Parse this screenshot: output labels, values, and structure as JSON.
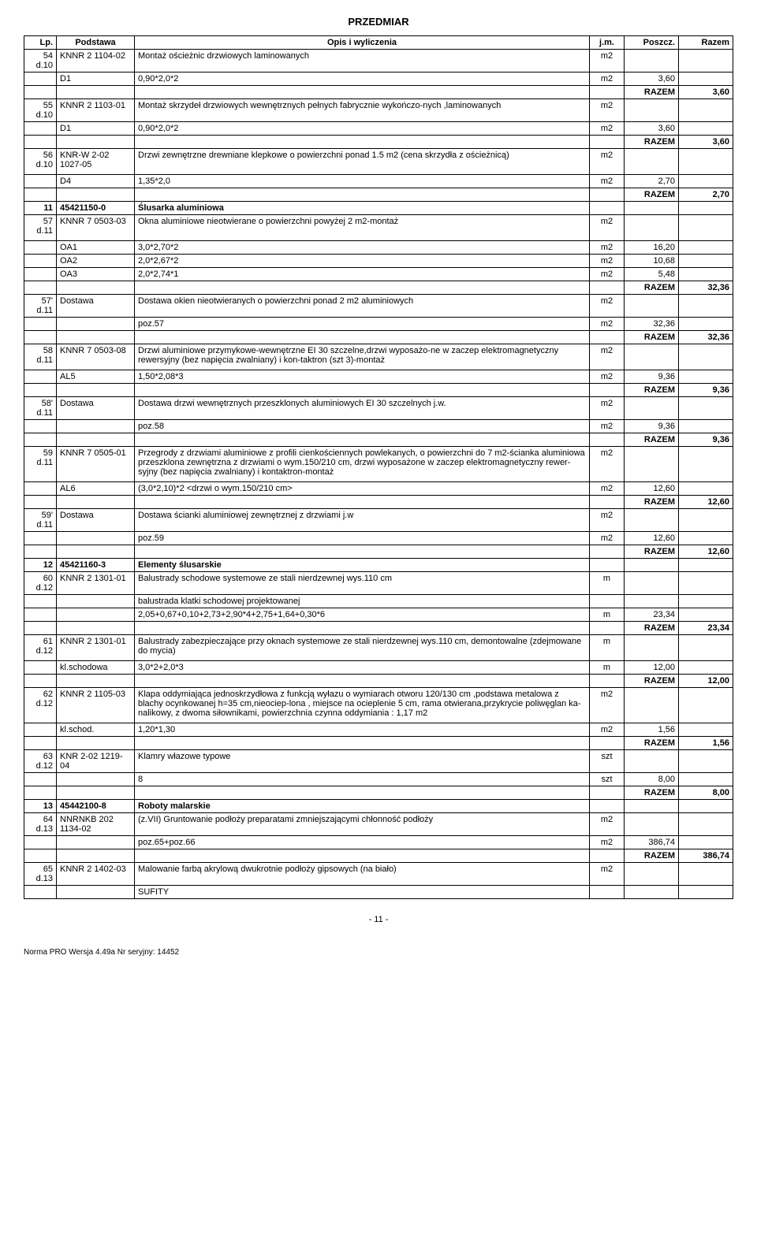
{
  "title": "PRZEDMIAR",
  "columns": [
    "Lp.",
    "Podstawa",
    "Opis i wyliczenia",
    "j.m.",
    "Poszcz.",
    "Razem"
  ],
  "rows": [
    {
      "lp": "54\nd.10",
      "pod": "KNNR 2 1104-02",
      "opis": "Montaż ościeżnic drzwiowych laminowanych",
      "jm": "m2",
      "poszcz": "",
      "razem": "",
      "bt": true
    },
    {
      "lp": "",
      "pod": "D1",
      "opis": "0,90*2,0*2",
      "jm": "m2",
      "poszcz": "3,60",
      "razem": "",
      "bt": true
    },
    {
      "lp": "",
      "pod": "",
      "opis": "",
      "jm": "",
      "poszcz": "RAZEM",
      "razem": "3,60",
      "bt": true,
      "bold": true
    },
    {
      "lp": "55\nd.10",
      "pod": "KNNR 2 1103-01",
      "opis": "Montaż skrzydeł drzwiowych wewnętrznych pełnych fabrycznie wykończo-nych ,laminowanych",
      "jm": "m2",
      "poszcz": "",
      "razem": "",
      "bt": true
    },
    {
      "lp": "",
      "pod": "D1",
      "opis": "0,90*2,0*2",
      "jm": "m2",
      "poszcz": "3,60",
      "razem": "",
      "bt": true
    },
    {
      "lp": "",
      "pod": "",
      "opis": "",
      "jm": "",
      "poszcz": "RAZEM",
      "razem": "3,60",
      "bt": true,
      "bold": true
    },
    {
      "lp": "56\nd.10",
      "pod": "KNR-W 2-02 1027-05",
      "opis": "Drzwi zewnętrzne drewniane klepkowe o powierzchni ponad 1.5 m2 (cena skrzydła z ościeżnicą)",
      "jm": "m2",
      "poszcz": "",
      "razem": "",
      "bt": true
    },
    {
      "lp": "",
      "pod": "",
      "opis": "",
      "jm": "",
      "poszcz": "",
      "razem": ""
    },
    {
      "lp": "",
      "pod": "D4",
      "opis": "1,35*2,0",
      "jm": "m2",
      "poszcz": "2,70",
      "razem": "",
      "bt": true
    },
    {
      "lp": "",
      "pod": "",
      "opis": "",
      "jm": "",
      "poszcz": "RAZEM",
      "razem": "2,70",
      "bt": true,
      "bold": true
    },
    {
      "lp": "11",
      "pod": "45421150-0",
      "opis": "Ślusarka aluminiowa",
      "jm": "",
      "poszcz": "",
      "razem": "",
      "bt": true,
      "bold": true
    },
    {
      "lp": "57\nd.11",
      "pod": "KNNR 7 0503-03",
      "opis": "Okna aluminiowe nieotwierane o powierzchni powyżej 2 m2-montaż",
      "jm": "m2",
      "poszcz": "",
      "razem": "",
      "bt": true
    },
    {
      "lp": "",
      "pod": "",
      "opis": "",
      "jm": "",
      "poszcz": "",
      "razem": ""
    },
    {
      "lp": "",
      "pod": "OA1",
      "opis": "3,0*2,70*2",
      "jm": "m2",
      "poszcz": "16,20",
      "razem": "",
      "bt": true
    },
    {
      "lp": "",
      "pod": "OA2",
      "opis": "2,0*2,67*2",
      "jm": "m2",
      "poszcz": "10,68",
      "razem": "",
      "bt": true
    },
    {
      "lp": "",
      "pod": "OA3",
      "opis": "2,0*2,74*1",
      "jm": "m2",
      "poszcz": "5,48",
      "razem": "",
      "bt": true
    },
    {
      "lp": "",
      "pod": "",
      "opis": "",
      "jm": "",
      "poszcz": "RAZEM",
      "razem": "32,36",
      "bt": true,
      "bold": true
    },
    {
      "lp": "57'\nd.11",
      "pod": "Dostawa",
      "opis": "Dostawa okien  nieotwieranych  o powierzchni ponad 2 m2 aluminiowych",
      "jm": "m2",
      "poszcz": "",
      "razem": "",
      "bt": true
    },
    {
      "lp": "",
      "pod": "",
      "opis": "poz.57",
      "jm": "m2",
      "poszcz": "32,36",
      "razem": "",
      "bt": true
    },
    {
      "lp": "",
      "pod": "",
      "opis": "",
      "jm": "",
      "poszcz": "RAZEM",
      "razem": "32,36",
      "bt": true,
      "bold": true
    },
    {
      "lp": "58\nd.11",
      "pod": "KNNR 7 0503-08",
      "opis": "Drzwi aluminiowe przymykowe-wewnętrzne EI 30 szczelne,drzwi wyposażo-ne w zaczep elektromagnetyczny rewersyjny (bez napięcia zwalniany) i kon-taktron (szt 3)-montaż",
      "jm": "m2",
      "poszcz": "",
      "razem": "",
      "bt": true
    },
    {
      "lp": "",
      "pod": "",
      "opis": "",
      "jm": "",
      "poszcz": "",
      "razem": ""
    },
    {
      "lp": "",
      "pod": "AL5",
      "opis": "1,50*2,08*3",
      "jm": "m2",
      "poszcz": "9,36",
      "razem": "",
      "bt": true
    },
    {
      "lp": "",
      "pod": "",
      "opis": "",
      "jm": "",
      "poszcz": "RAZEM",
      "razem": "9,36",
      "bt": true,
      "bold": true
    },
    {
      "lp": "58'\nd.11",
      "pod": "Dostawa",
      "opis": "Dostawa drzwi wewnętrznych przeszklonych aluminiowych EI 30 szczelnych j.w.",
      "jm": "m2",
      "poszcz": "",
      "razem": "",
      "bt": true
    },
    {
      "lp": "",
      "pod": "",
      "opis": "poz.58",
      "jm": "m2",
      "poszcz": "9,36",
      "razem": "",
      "bt": true
    },
    {
      "lp": "",
      "pod": "",
      "opis": "",
      "jm": "",
      "poszcz": "RAZEM",
      "razem": "9,36",
      "bt": true,
      "bold": true
    },
    {
      "lp": "59\nd.11",
      "pod": "KNNR 7 0505-01",
      "opis": "Przegrody z drzwiami aluminiowe z profili cienkościennych powlekanych, o powierzchni do 7 m2-ścianka aluminiowa przeszklona zewnętrzna z drzwiami o wym.150/210 cm, drzwi wyposażone w zaczep elektromagnetyczny rewer-syjny (bez napięcia zwalniany) i kontaktron-montaż",
      "jm": "m2",
      "poszcz": "",
      "razem": "",
      "bt": true
    },
    {
      "lp": "",
      "pod": "",
      "opis": "",
      "jm": "",
      "poszcz": "",
      "razem": ""
    },
    {
      "lp": "",
      "pod": "AL6",
      "opis": "(3,0*2,10)*2 <drzwi o wym.150/210 cm>",
      "jm": "m2",
      "poszcz": "12,60",
      "razem": "",
      "bt": true
    },
    {
      "lp": "",
      "pod": "",
      "opis": "",
      "jm": "",
      "poszcz": "RAZEM",
      "razem": "12,60",
      "bt": true,
      "bold": true
    },
    {
      "lp": "59'\nd.11",
      "pod": "Dostawa",
      "opis": "Dostawa ścianki aluminiowej zewnętrznej z drzwiami j.w",
      "jm": "m2",
      "poszcz": "",
      "razem": "",
      "bt": true
    },
    {
      "lp": "",
      "pod": "",
      "opis": "poz.59",
      "jm": "m2",
      "poszcz": "12,60",
      "razem": "",
      "bt": true
    },
    {
      "lp": "",
      "pod": "",
      "opis": "",
      "jm": "",
      "poszcz": "RAZEM",
      "razem": "12,60",
      "bt": true,
      "bold": true
    },
    {
      "lp": "12",
      "pod": "45421160-3",
      "opis": "Elementy ślusarskie",
      "jm": "",
      "poszcz": "",
      "razem": "",
      "bt": true,
      "bold": true
    },
    {
      "lp": "60\nd.12",
      "pod": "KNNR 2 1301-01",
      "opis": "Balustrady schodowe systemowe ze stali nierdzewnej wys.110 cm",
      "jm": "m",
      "poszcz": "",
      "razem": "",
      "bt": true
    },
    {
      "lp": "",
      "pod": "",
      "opis": "balustrada klatki schodowej projektowanej",
      "jm": "",
      "poszcz": "",
      "razem": "",
      "bt": true
    },
    {
      "lp": "",
      "pod": "",
      "opis": "2,05+0,67+0,10+2,73+2,90*4+2,75+1,64+0,30*6",
      "jm": "m",
      "poszcz": "23,34",
      "razem": "",
      "bt": true
    },
    {
      "lp": "",
      "pod": "",
      "opis": "",
      "jm": "",
      "poszcz": "RAZEM",
      "razem": "23,34",
      "bt": true,
      "bold": true
    },
    {
      "lp": "61\nd.12",
      "pod": "KNNR 2 1301-01",
      "opis": "Balustrady zabezpieczające przy oknach systemowe ze stali nierdzewnej wys.110 cm, demontowalne (zdejmowane do mycia)",
      "jm": "m",
      "poszcz": "",
      "razem": "",
      "bt": true
    },
    {
      "lp": "",
      "pod": "",
      "opis": "",
      "jm": "",
      "poszcz": "",
      "razem": ""
    },
    {
      "lp": "",
      "pod": "kl.schodowa",
      "opis": "3,0*2+2,0*3",
      "jm": "m",
      "poszcz": "12,00",
      "razem": "",
      "bt": true
    },
    {
      "lp": "",
      "pod": "",
      "opis": "",
      "jm": "",
      "poszcz": "RAZEM",
      "razem": "12,00",
      "bt": true,
      "bold": true
    },
    {
      "lp": "62\nd.12",
      "pod": "KNNR 2 1105-03",
      "opis": "Klapa oddymiająca jednoskrzydłowa z funkcją wyłazu o wymiarach otworu 120/130  cm ,podstawa metalowa z blachy ocynkowanej h=35 cm,nieociep-lona , miejsce na ocieplenie 5 cm, rama otwierana,przykrycie poliwęglan ka-nalikowy, z dwoma siłownikami, powierzchnia czynna oddymiania : 1,17 m2",
      "jm": "m2",
      "poszcz": "",
      "razem": "",
      "bt": true
    },
    {
      "lp": "",
      "pod": "",
      "opis": "",
      "jm": "",
      "poszcz": "",
      "razem": ""
    },
    {
      "lp": "",
      "pod": "kl.schod.",
      "opis": "1,20*1,30",
      "jm": "m2",
      "poszcz": "1,56",
      "razem": "",
      "bt": true
    },
    {
      "lp": "",
      "pod": "",
      "opis": "",
      "jm": "",
      "poszcz": "RAZEM",
      "razem": "1,56",
      "bt": true,
      "bold": true
    },
    {
      "lp": "63\nd.12",
      "pod": "KNR 2-02 1219-04",
      "opis": "Klamry włazowe typowe",
      "jm": "szt",
      "poszcz": "",
      "razem": "",
      "bt": true
    },
    {
      "lp": "",
      "pod": "",
      "opis": "8",
      "jm": "szt",
      "poszcz": "8,00",
      "razem": "",
      "bt": true
    },
    {
      "lp": "",
      "pod": "",
      "opis": "",
      "jm": "",
      "poszcz": "RAZEM",
      "razem": "8,00",
      "bt": true,
      "bold": true
    },
    {
      "lp": "13",
      "pod": "45442100-8",
      "opis": "Roboty malarskie",
      "jm": "",
      "poszcz": "",
      "razem": "",
      "bt": true,
      "bold": true
    },
    {
      "lp": "64\nd.13",
      "pod": "NNRNKB 202 1134-02",
      "opis": "(z.VII) Gruntowanie podłoży preparatami zmniejszającymi chłonność podłoży",
      "jm": "m2",
      "poszcz": "",
      "razem": "",
      "bt": true
    },
    {
      "lp": "",
      "pod": "",
      "opis": "poz.65+poz.66",
      "jm": "m2",
      "poszcz": "386,74",
      "razem": "",
      "bt": true
    },
    {
      "lp": "",
      "pod": "",
      "opis": "",
      "jm": "",
      "poszcz": "RAZEM",
      "razem": "386,74",
      "bt": true,
      "bold": true
    },
    {
      "lp": "65\nd.13",
      "pod": "KNNR 2 1402-03",
      "opis": "Malowanie farbą akrylową dwukrotnie podłoży gipsowych (na biało)",
      "jm": "m2",
      "poszcz": "",
      "razem": "",
      "bt": true
    },
    {
      "lp": "",
      "pod": "",
      "opis": "SUFITY",
      "jm": "",
      "poszcz": "",
      "razem": "",
      "bt": true,
      "bb": true
    }
  ],
  "pageNum": "- 11 -",
  "footer": "Norma PRO Wersja 4.49a Nr seryjny: 14452"
}
